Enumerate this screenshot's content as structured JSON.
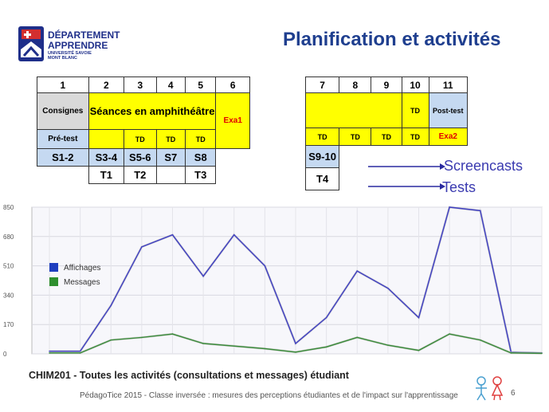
{
  "logo": {
    "line1": "DÉPARTEMENT",
    "line2": "APPRENDRE",
    "line3": "UNIVERSITÉ SAVOIE",
    "line4": "MONT BLANC"
  },
  "title": "Planification et activités",
  "table_left": {
    "headers": [
      "1",
      "2",
      "3",
      "4",
      "5",
      "6"
    ],
    "consignes": "Consignes",
    "seances": "Séances en amphithéâtre",
    "exa1": "Exa1",
    "pretest": "Pré-test",
    "td": "TD",
    "sessions": [
      "S1-2",
      "S3-4",
      "S5-6",
      "S7",
      "S8"
    ],
    "tests": [
      "T1",
      "T2",
      "",
      "T3"
    ]
  },
  "table_right": {
    "headers": [
      "7",
      "8",
      "9",
      "10",
      "11"
    ],
    "td": "TD",
    "posttest": "Post-test",
    "exa2": "Exa2",
    "s910": "S9-10",
    "t4": "T4"
  },
  "legend_arrows": {
    "screencasts": "Screencasts",
    "tests": "Tests"
  },
  "chart_data": {
    "type": "line",
    "title": "CHIM201 - Toutes les activités (consultations et messages) étudiant",
    "ylim": [
      0,
      850
    ],
    "yticks": [
      "850",
      "680",
      "510",
      "340",
      "170",
      "0"
    ],
    "series": [
      {
        "name": "Affichages",
        "color": "#4040c0",
        "values": [
          15,
          15,
          280,
          620,
          690,
          450,
          690,
          510,
          60,
          210,
          480,
          380,
          210,
          850,
          830,
          10,
          5
        ]
      },
      {
        "name": "Messages",
        "color": "#3a8a3a",
        "values": [
          5,
          5,
          80,
          95,
          115,
          60,
          45,
          30,
          10,
          40,
          95,
          50,
          20,
          115,
          80,
          5,
          3
        ]
      }
    ],
    "legend_colors": {
      "Affichages": "#1f3fbf",
      "Messages": "#2f8f2f"
    }
  },
  "footer": {
    "text": "PédagoTice 2015 - Classe inversée : mesures des perceptions étudiantes et de l'impact sur l'apprentissage",
    "page": "6"
  }
}
